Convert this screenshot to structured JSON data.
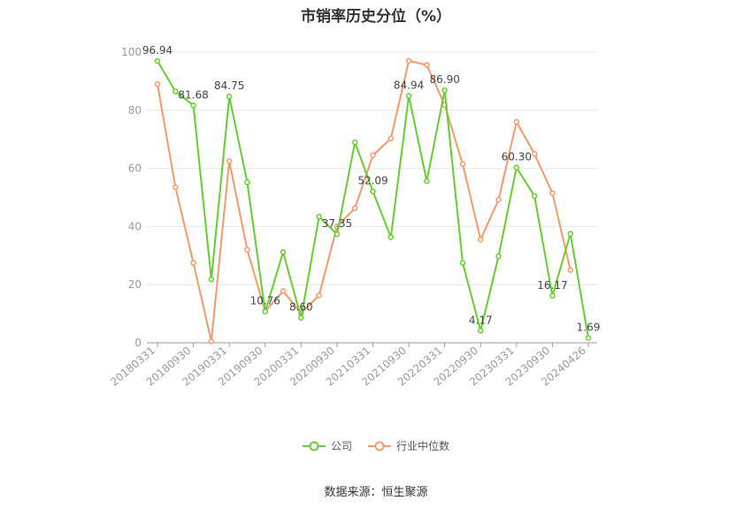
{
  "chart_data": {
    "type": "line",
    "title": "市销率历史分位（%）",
    "xlabel": "",
    "ylabel": "",
    "ylim": [
      0,
      100
    ],
    "yticks": [
      0,
      20,
      40,
      60,
      80,
      100
    ],
    "grid": true,
    "legend_position": "bottom",
    "x": [
      "20180331",
      "20180630",
      "20180930",
      "20181231",
      "20190331",
      "20190630",
      "20190930",
      "20191231",
      "20200331",
      "20200630",
      "20200930",
      "20201231",
      "20210331",
      "20210630",
      "20210930",
      "20211231",
      "20220331",
      "20220630",
      "20220930",
      "20221231",
      "20230331",
      "20230630",
      "20230930",
      "20231231",
      "20240426"
    ],
    "xtick_labels": [
      "20180331",
      "20180930",
      "20190331",
      "20190930",
      "20200331",
      "20200930",
      "20210331",
      "20210930",
      "20220331",
      "20220930",
      "20230331",
      "20230930",
      "20240426"
    ],
    "series": [
      {
        "name": "公司",
        "color": "#66cc33",
        "values": [
          96.94,
          86.5,
          81.68,
          21.8,
          84.75,
          55.2,
          10.76,
          31.2,
          8.6,
          43.4,
          37.35,
          69.0,
          52.09,
          36.3,
          84.94,
          55.6,
          86.9,
          27.5,
          4.17,
          29.8,
          60.3,
          50.5,
          16.17,
          37.5,
          1.69
        ],
        "labels": [
          "96.94",
          "",
          "81.68",
          "",
          "84.75",
          "",
          "10.76",
          "",
          "8.60",
          "",
          "37.35",
          "",
          "52.09",
          "",
          "84.94",
          "",
          "86.90",
          "",
          "4.17",
          "",
          "60.30",
          "",
          "16.17",
          "",
          "1.69"
        ]
      },
      {
        "name": "行业中位数",
        "color": "#f29a6b",
        "values": [
          89.0,
          53.5,
          27.5,
          0.5,
          62.5,
          32.0,
          10.8,
          17.8,
          10.2,
          16.3,
          40.0,
          46.3,
          64.5,
          70.3,
          97.0,
          95.6,
          81.8,
          61.5,
          35.5,
          49.2,
          76.0,
          65.0,
          51.5,
          25.0,
          null
        ]
      }
    ]
  },
  "source": "数据来源：恒生聚源"
}
